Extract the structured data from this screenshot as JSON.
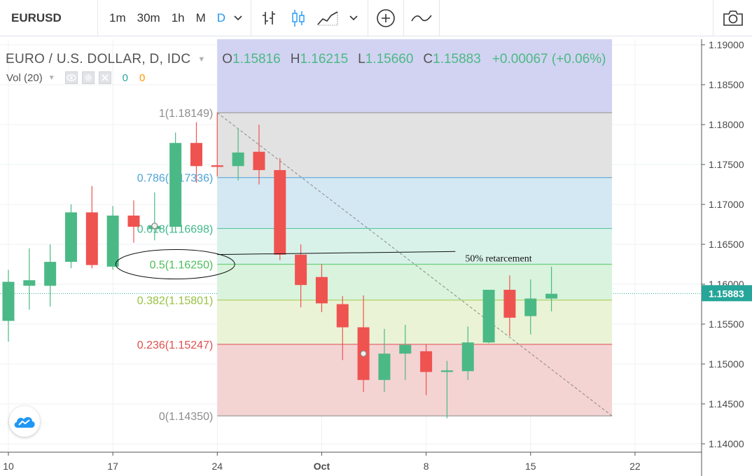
{
  "toolbar": {
    "symbol": "EURUSD",
    "intervals": [
      "1m",
      "30m",
      "1h",
      "M",
      "D"
    ],
    "active_interval": "D",
    "icons": [
      "bar-style-icon",
      "candles-icon",
      "area-chart-icon",
      "chevron-down-icon",
      "add-indicator-icon",
      "compare-line-icon",
      "camera-icon"
    ]
  },
  "legend": {
    "title": "EURO / U.S. DOLLAR, D, IDC",
    "open_label": "O",
    "open": "1.15816",
    "high_label": "H",
    "high": "1.16215",
    "low_label": "L",
    "low": "1.15660",
    "close_label": "C",
    "close": "1.15883",
    "change": "+0.00067 (+0.06%)",
    "volume_label": "Vol (20)",
    "volume_value_1": "0",
    "volume_value_2": "0"
  },
  "chart_data": {
    "type": "candlestick",
    "symbol": "EURUSD",
    "price_axis": {
      "range": [
        1.1395,
        1.1908
      ],
      "ticks": [
        "1.19000",
        "1.18500",
        "1.18000",
        "1.17500",
        "1.17000",
        "1.16500",
        "1.16000",
        "1.15500",
        "1.15000",
        "1.14500",
        "1.14000"
      ],
      "last_price": "1.15883"
    },
    "time_axis": {
      "labels": [
        {
          "text": "10",
          "index": 0
        },
        {
          "text": "17",
          "index": 5
        },
        {
          "text": "24",
          "index": 10
        },
        {
          "text": "Oct",
          "index": 15
        },
        {
          "text": "8",
          "index": 20
        },
        {
          "text": "15",
          "index": 25
        },
        {
          "text": "22",
          "index": 30
        }
      ]
    },
    "candles": [
      {
        "i": 0,
        "o": 1.1554,
        "h": 1.1618,
        "l": 1.1528,
        "c": 1.1603
      },
      {
        "i": 1,
        "o": 1.1598,
        "h": 1.1645,
        "l": 1.1568,
        "c": 1.1605
      },
      {
        "i": 2,
        "o": 1.1598,
        "h": 1.165,
        "l": 1.1572,
        "c": 1.1628
      },
      {
        "i": 3,
        "o": 1.1628,
        "h": 1.17,
        "l": 1.162,
        "c": 1.169
      },
      {
        "i": 4,
        "o": 1.169,
        "h": 1.1723,
        "l": 1.162,
        "c": 1.1624
      },
      {
        "i": 5,
        "o": 1.1622,
        "h": 1.1698,
        "l": 1.1618,
        "c": 1.1686
      },
      {
        "i": 6,
        "o": 1.1686,
        "h": 1.1705,
        "l": 1.1652,
        "c": 1.1672
      },
      {
        "i": 7,
        "o": 1.1669,
        "h": 1.1715,
        "l": 1.1655,
        "c": 1.1673
      },
      {
        "i": 8,
        "o": 1.1672,
        "h": 1.179,
        "l": 1.1664,
        "c": 1.1777
      },
      {
        "i": 9,
        "o": 1.1777,
        "h": 1.1803,
        "l": 1.1727,
        "c": 1.1748
      },
      {
        "i": 10,
        "o": 1.1749,
        "h": 1.1815,
        "l": 1.1735,
        "c": 1.1747
      },
      {
        "i": 11,
        "o": 1.1748,
        "h": 1.1795,
        "l": 1.173,
        "c": 1.1765
      },
      {
        "i": 12,
        "o": 1.1766,
        "h": 1.18,
        "l": 1.1725,
        "c": 1.1743
      },
      {
        "i": 13,
        "o": 1.1743,
        "h": 1.1758,
        "l": 1.163,
        "c": 1.1637
      },
      {
        "i": 14,
        "o": 1.1637,
        "h": 1.165,
        "l": 1.1571,
        "c": 1.1599
      },
      {
        "i": 15,
        "o": 1.1609,
        "h": 1.1625,
        "l": 1.1565,
        "c": 1.1576
      },
      {
        "i": 16,
        "o": 1.1575,
        "h": 1.1585,
        "l": 1.1505,
        "c": 1.1546
      },
      {
        "i": 17,
        "o": 1.1546,
        "h": 1.1586,
        "l": 1.1465,
        "c": 1.148
      },
      {
        "i": 18,
        "o": 1.148,
        "h": 1.1544,
        "l": 1.1465,
        "c": 1.1513
      },
      {
        "i": 19,
        "o": 1.1513,
        "h": 1.1549,
        "l": 1.148,
        "c": 1.1524
      },
      {
        "i": 20,
        "o": 1.1516,
        "h": 1.1525,
        "l": 1.1461,
        "c": 1.149
      },
      {
        "i": 21,
        "o": 1.149,
        "h": 1.1504,
        "l": 1.1432,
        "c": 1.1492
      },
      {
        "i": 22,
        "o": 1.1491,
        "h": 1.1547,
        "l": 1.148,
        "c": 1.1527
      },
      {
        "i": 23,
        "o": 1.1527,
        "h": 1.1593,
        "l": 1.1526,
        "c": 1.1593
      },
      {
        "i": 24,
        "o": 1.1593,
        "h": 1.1611,
        "l": 1.1535,
        "c": 1.1558
      },
      {
        "i": 25,
        "o": 1.156,
        "h": 1.1606,
        "l": 1.1537,
        "c": 1.1582
      },
      {
        "i": 26,
        "o": 1.1582,
        "h": 1.1622,
        "l": 1.1566,
        "c": 1.1588
      }
    ],
    "colors": {
      "up": "#4bb985",
      "down": "#ef5350"
    },
    "fibonacci": {
      "start_index": 10,
      "end_index": 28.9,
      "levels": [
        {
          "ratio_label": "1",
          "price": 1.18149,
          "text": "1(1.18149)",
          "line_color": "#9e9e9e",
          "fill": "#e2e2e2",
          "label_color": "#8d8d8d"
        },
        {
          "ratio_label": "0.786",
          "price": 1.17336,
          "text": "0.786(1.17336)",
          "line_color": "#5ca8d8",
          "fill": "#d4e8f3",
          "label_color": "#4ea3d6"
        },
        {
          "ratio_label": "0.618",
          "price": 1.16698,
          "text": "0.618(1.16698)",
          "line_color": "#5bc7a1",
          "fill": "#d8f2ea",
          "label_color": "#40b98e"
        },
        {
          "ratio_label": "0.5",
          "price": 1.1625,
          "text": "0.5(1.16250)",
          "line_color": "#6dcf76",
          "fill": "#d9f3dd",
          "label_color": "#4cbf58"
        },
        {
          "ratio_label": "0.382",
          "price": 1.15801,
          "text": "0.382(1.15801)",
          "line_color": "#a8cf5a",
          "fill": "#eaf3d6",
          "label_color": "#99c242"
        },
        {
          "ratio_label": "0.236",
          "price": 1.15247,
          "text": "0.236(1.15247)",
          "line_color": "#e26b6b",
          "fill": "#f4d3d3",
          "label_color": "#e04f4f"
        },
        {
          "ratio_label": "0",
          "price": 1.1435,
          "text": "0(1.14350)",
          "line_color": "#9e9e9e",
          "fill": "#f4d3d3",
          "label_color": "#8d8d8d"
        }
      ],
      "upper_fill": "#d2d3f2",
      "diagonal_start": {
        "index": 10,
        "price": 1.18149
      },
      "diagonal_end": {
        "index": 28.9,
        "price": 1.1435
      }
    },
    "annotation": {
      "text": "50% retarcement",
      "price": 1.1625,
      "line_from": {
        "index": 10,
        "price": 1.16372
      },
      "line_to": {
        "index": 21.4,
        "price": 1.1641
      }
    },
    "crosshair_markers": [
      {
        "index": 7,
        "price": 1.1673
      },
      {
        "index": 17,
        "price": 1.1513
      }
    ],
    "last_price_line_color": "#26a69a"
  }
}
